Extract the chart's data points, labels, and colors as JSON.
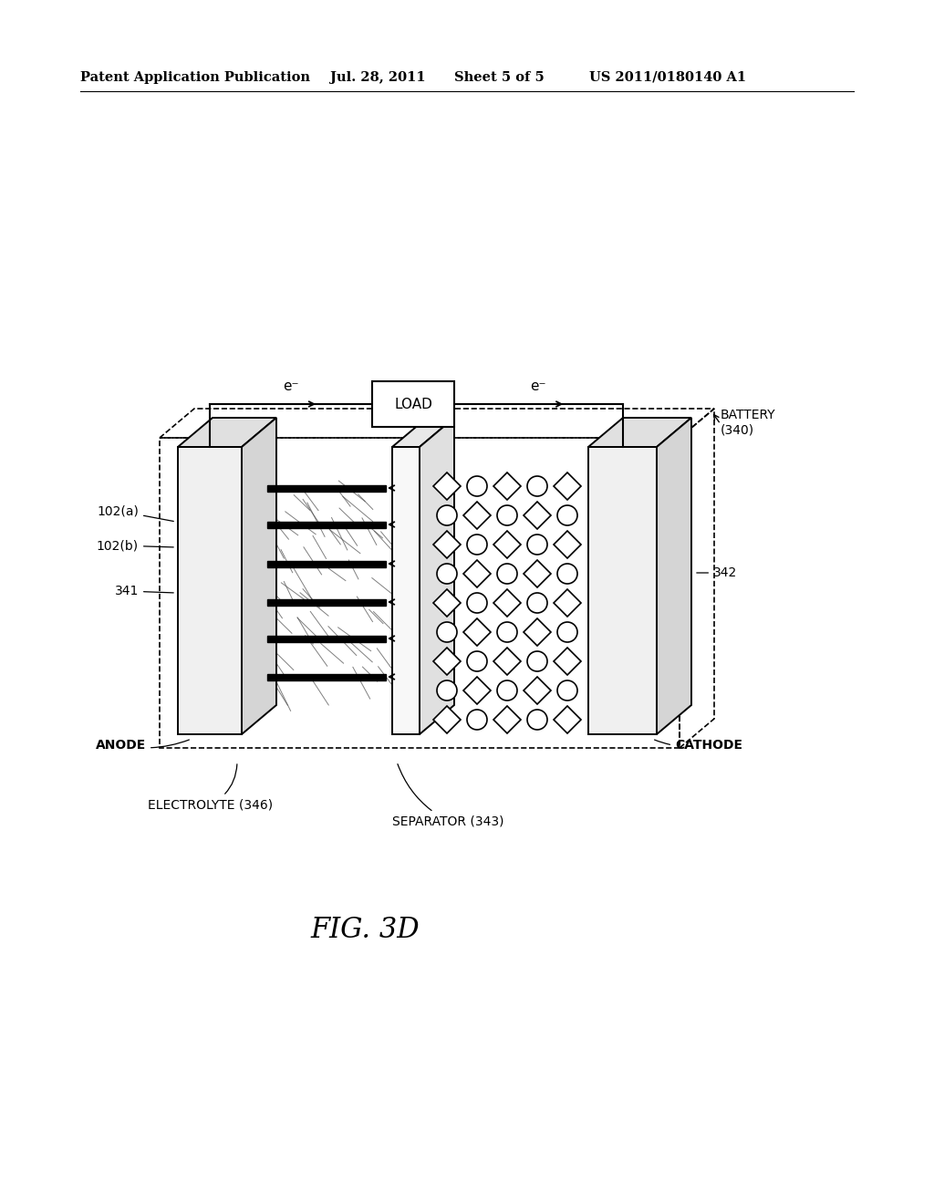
{
  "bg_color": "#ffffff",
  "line_color": "#000000",
  "header_text": "Patent Application Publication",
  "header_date": "Jul. 28, 2011",
  "header_sheet": "Sheet 5 of 5",
  "header_patent": "US 2011/0180140 A1",
  "fig_label": "FIG. 3D",
  "labels": {
    "battery": "BATTERY\n(340)",
    "load": "LOAD",
    "anode": "ANODE",
    "cathode": "CATHODE",
    "electrolyte": "ELECTROLYTE (346)",
    "separator": "SEPARATOR (343)",
    "label_102a": "102(a)",
    "label_102b": "102(b)",
    "label_341": "341",
    "label_342": "342"
  }
}
